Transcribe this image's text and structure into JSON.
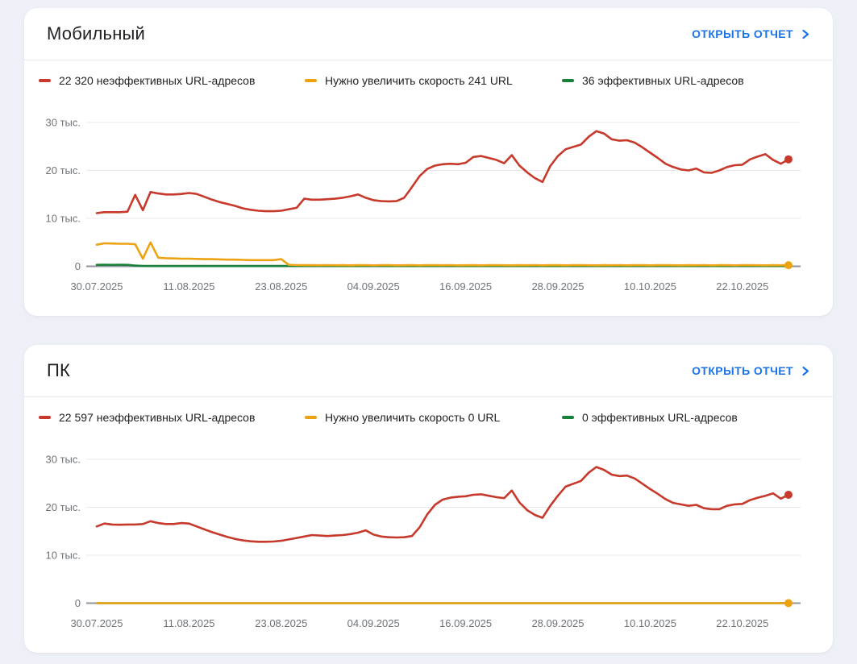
{
  "page": {
    "background": "#edf0f6",
    "link_color": "#1a73e8"
  },
  "cards": [
    {
      "title": "Мобильный",
      "report_link": "ОТКРЫТЬ ОТЧЕТ",
      "legend": [
        {
          "label": "22 320 неэффективных URL-адресов",
          "color": "#c6392b"
        },
        {
          "label": "Нужно увеличить скорость 241 URL",
          "color": "#eda211"
        },
        {
          "label": "36 эффективных URL-адресов",
          "color": "#188038"
        }
      ],
      "chart_data": {
        "type": "line",
        "ylim": [
          0,
          34000
        ],
        "grid": true,
        "y_ticks": [
          {
            "value": 0,
            "label": "0"
          },
          {
            "value": 10000,
            "label": "10 тыс."
          },
          {
            "value": 20000,
            "label": "20 тыс."
          },
          {
            "value": 30000,
            "label": "30 тыс."
          }
        ],
        "x_ticks": [
          {
            "day": 0,
            "label": "30.07.2025"
          },
          {
            "day": 12,
            "label": "11.08.2025"
          },
          {
            "day": 24,
            "label": "23.08.2025"
          },
          {
            "day": 36,
            "label": "04.09.2025"
          },
          {
            "day": 48,
            "label": "16.09.2025"
          },
          {
            "day": 60,
            "label": "28.09.2025"
          },
          {
            "day": 72,
            "label": "10.10.2025"
          },
          {
            "day": 84,
            "label": "22.10.2025"
          }
        ],
        "series": [
          {
            "name": "Неэффективные URL",
            "color": "#c6392b",
            "end_dot": true,
            "values": [
              11100,
              11300,
              11300,
              11300,
              11400,
              14900,
              11700,
              15500,
              15200,
              15000,
              15000,
              15100,
              15300,
              15100,
              14500,
              13900,
              13400,
              13000,
              12600,
              12100,
              11800,
              11600,
              11500,
              11500,
              11600,
              11900,
              12200,
              14100,
              13900,
              13900,
              14000,
              14100,
              14300,
              14600,
              15000,
              14300,
              13800,
              13600,
              13550,
              13600,
              14300,
              16500,
              18800,
              20300,
              21000,
              21300,
              21400,
              21300,
              21600,
              22800,
              23000,
              22600,
              22200,
              21500,
              23200,
              21000,
              19600,
              18400,
              17600,
              20900,
              23000,
              24400,
              24900,
              25400,
              27000,
              28200,
              27700,
              26500,
              26200,
              26300,
              25800,
              24800,
              23700,
              22600,
              21400,
              20700,
              20200,
              20000,
              20400,
              19600,
              19500,
              20000,
              20700,
              21100,
              21200,
              22300,
              22900,
              23400,
              22200,
              21400,
              22320
            ]
          },
          {
            "name": "Нужно увеличить скорость",
            "color": "#eda211",
            "end_dot": true,
            "values": [
              4500,
              4800,
              4750,
              4700,
              4700,
              4600,
              1600,
              5000,
              1800,
              1700,
              1650,
              1600,
              1600,
              1550,
              1500,
              1500,
              1450,
              1400,
              1400,
              1350,
              1300,
              1300,
              1300,
              1300,
              1500,
              300,
              260,
              240,
              230,
              220,
              250,
              220,
              240,
              210,
              230,
              250,
              210,
              230,
              240,
              210,
              220,
              250,
              210,
              230,
              240,
              220,
              250,
              210,
              220,
              240,
              210,
              230,
              250,
              220,
              210,
              240,
              220,
              250,
              210,
              230,
              240,
              210,
              230,
              250,
              220,
              210,
              240,
              220,
              250,
              210,
              230,
              240,
              210,
              230,
              250,
              220,
              210,
              240,
              220,
              250,
              210,
              230,
              240,
              210,
              230,
              250,
              220,
              210,
              240,
              220,
              241
            ]
          },
          {
            "name": "Эффективные URL",
            "color": "#188038",
            "end_dot": false,
            "values": [
              300,
              330,
              310,
              320,
              300,
              150,
              90,
              70,
              60,
              60,
              60,
              60,
              60,
              60,
              60,
              60,
              60,
              60,
              60,
              60,
              60,
              60,
              60,
              60,
              60,
              60,
              60,
              60,
              60,
              60,
              60,
              60,
              60,
              60,
              60,
              60,
              60,
              60,
              60,
              60,
              60,
              60,
              60,
              60,
              60,
              60,
              60,
              60,
              60,
              60,
              60,
              60,
              60,
              60,
              60,
              60,
              60,
              60,
              60,
              60,
              60,
              60,
              60,
              60,
              60,
              60,
              60,
              60,
              60,
              60,
              60,
              60,
              60,
              60,
              60,
              60,
              60,
              60,
              60,
              60,
              60,
              60,
              60,
              60,
              60,
              60,
              60,
              60,
              60,
              60,
              36
            ]
          }
        ]
      }
    },
    {
      "title": "ПК",
      "report_link": "ОТКРЫТЬ ОТЧЕТ",
      "legend": [
        {
          "label": "22 597 неэффективных URL-адресов",
          "color": "#c6392b"
        },
        {
          "label": "Нужно увеличить скорость 0 URL",
          "color": "#eda211"
        },
        {
          "label": "0 эффективных URL-адресов",
          "color": "#188038"
        }
      ],
      "chart_data": {
        "type": "line",
        "ylim": [
          0,
          34000
        ],
        "grid": true,
        "y_ticks": [
          {
            "value": 0,
            "label": "0"
          },
          {
            "value": 10000,
            "label": "10 тыс."
          },
          {
            "value": 20000,
            "label": "20 тыс."
          },
          {
            "value": 30000,
            "label": "30 тыс."
          }
        ],
        "x_ticks": [
          {
            "day": 0,
            "label": "30.07.2025"
          },
          {
            "day": 12,
            "label": "11.08.2025"
          },
          {
            "day": 24,
            "label": "23.08.2025"
          },
          {
            "day": 36,
            "label": "04.09.2025"
          },
          {
            "day": 48,
            "label": "16.09.2025"
          },
          {
            "day": 60,
            "label": "28.09.2025"
          },
          {
            "day": 72,
            "label": "10.10.2025"
          },
          {
            "day": 84,
            "label": "22.10.2025"
          }
        ],
        "series": [
          {
            "name": "Неэффективные URL",
            "color": "#c6392b",
            "end_dot": true,
            "values": [
              16000,
              16600,
              16400,
              16350,
              16400,
              16400,
              16500,
              17100,
              16700,
              16500,
              16500,
              16700,
              16600,
              16000,
              15400,
              14800,
              14300,
              13800,
              13400,
              13100,
              12900,
              12800,
              12800,
              12850,
              13000,
              13300,
              13600,
              13900,
              14200,
              14100,
              14000,
              14100,
              14200,
              14400,
              14700,
              15200,
              14300,
              13900,
              13750,
              13700,
              13750,
              14000,
              15800,
              18500,
              20500,
              21600,
              22000,
              22200,
              22300,
              22600,
              22700,
              22400,
              22100,
              21900,
              23500,
              21000,
              19400,
              18400,
              17800,
              20300,
              22400,
              24300,
              24900,
              25500,
              27200,
              28400,
              27800,
              26800,
              26500,
              26600,
              26000,
              24900,
              23800,
              22800,
              21700,
              20900,
              20600,
              20300,
              20500,
              19800,
              19600,
              19600,
              20300,
              20600,
              20700,
              21500,
              22000,
              22400,
              22900,
              21800,
              22597
            ]
          },
          {
            "name": "Нужно увеличить скорость",
            "color": "#eda211",
            "end_dot": true,
            "values": [
              0,
              0,
              0,
              0,
              0,
              0,
              0,
              0,
              0,
              0,
              0,
              0,
              0,
              0,
              0,
              0,
              0,
              0,
              0,
              0,
              0,
              0,
              0,
              0,
              0,
              0,
              0,
              0,
              0,
              0,
              0,
              0,
              0,
              0,
              0,
              0,
              0,
              0,
              0,
              0,
              0,
              0,
              0,
              0,
              0,
              0,
              0,
              0,
              0,
              0,
              0,
              0,
              0,
              0,
              0,
              0,
              0,
              0,
              0,
              0,
              0,
              0,
              0,
              0,
              0,
              0,
              0,
              0,
              0,
              0,
              0,
              0,
              0,
              0,
              0,
              0,
              0,
              0,
              0,
              0,
              0,
              0,
              0,
              0,
              0,
              0,
              0,
              0,
              0,
              0,
              0
            ]
          },
          {
            "name": "Эффективные URL",
            "color": "#188038",
            "end_dot": false,
            "values": [
              0,
              0,
              0,
              0,
              0,
              0,
              0,
              0,
              0,
              0,
              0,
              0,
              0,
              0,
              0,
              0,
              0,
              0,
              0,
              0,
              0,
              0,
              0,
              0,
              0,
              0,
              0,
              0,
              0,
              0,
              0,
              0,
              0,
              0,
              0,
              0,
              0,
              0,
              0,
              0,
              0,
              0,
              0,
              0,
              0,
              0,
              0,
              0,
              0,
              0,
              0,
              0,
              0,
              0,
              0,
              0,
              0,
              0,
              0,
              0,
              0,
              0,
              0,
              0,
              0,
              0,
              0,
              0,
              0,
              0,
              0,
              0,
              0,
              0,
              0,
              0,
              0,
              0,
              0,
              0,
              0,
              0,
              0,
              0,
              0,
              0,
              0,
              0,
              0,
              0,
              0
            ]
          }
        ]
      }
    }
  ]
}
